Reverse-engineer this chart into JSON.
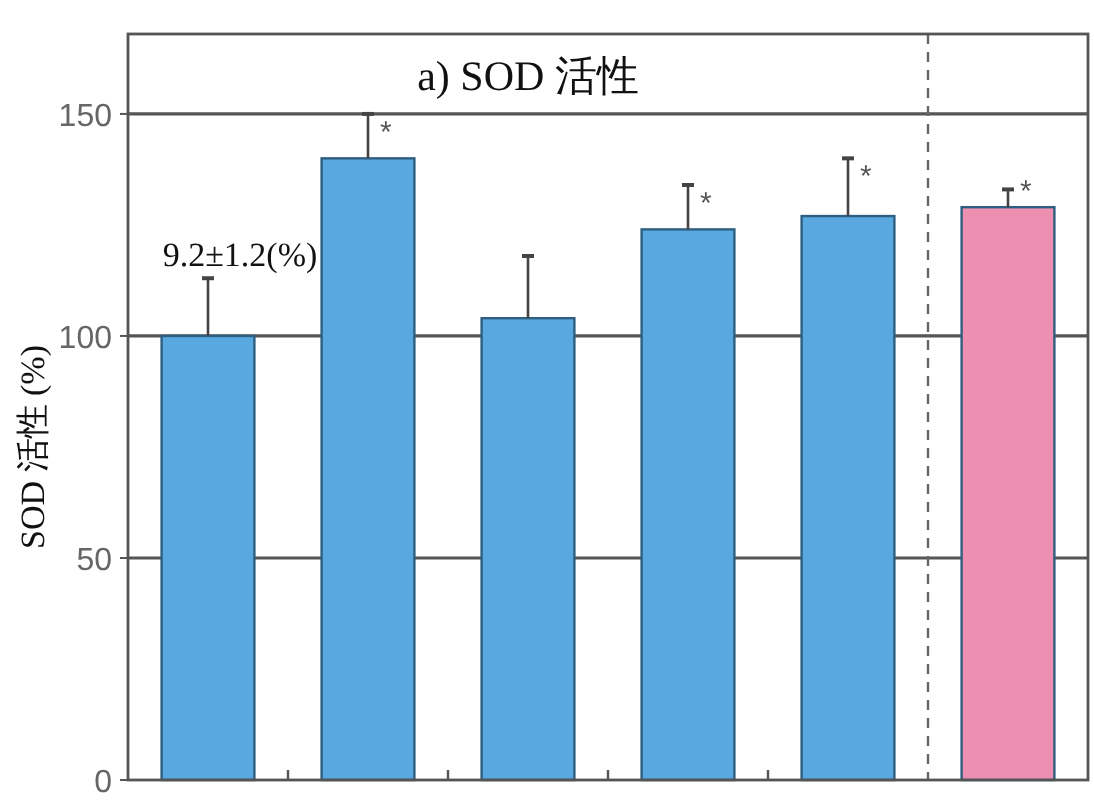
{
  "chart_data": {
    "type": "bar",
    "title": "a) SOD 活性",
    "ylabel": "SOD 活性 (%)",
    "categories": [
      null,
      null,
      null,
      null,
      null,
      null
    ],
    "values": [
      100,
      140,
      104,
      124,
      127,
      129
    ],
    "colors": [
      "#5aa8e0",
      "#5aa8e0",
      "#5aa8e0",
      "#5aa8e0",
      "#5aa8e0",
      "#ec8fb0"
    ],
    "errors": [
      13,
      10,
      14,
      10,
      13,
      4
    ],
    "value_labels": [
      null,
      "*",
      null,
      "*",
      "*",
      "*"
    ],
    "annotations": [
      "9.2±1.2(%)"
    ],
    "ylim": [
      0,
      168
    ],
    "yticks": [
      0,
      50,
      100,
      150
    ],
    "grid": "y"
  }
}
